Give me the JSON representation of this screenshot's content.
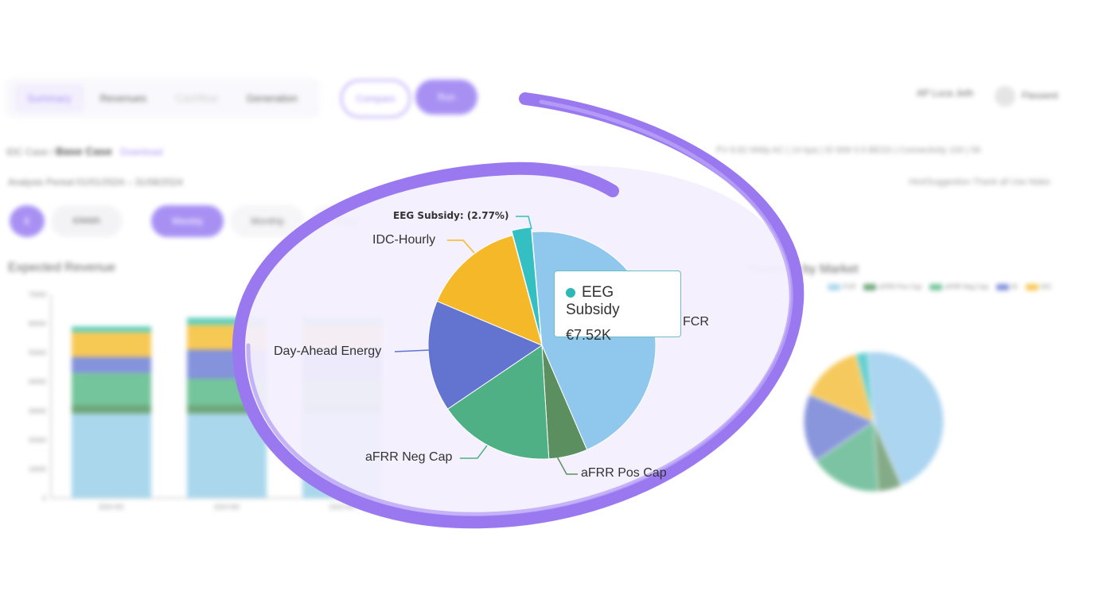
{
  "header": {
    "tabs": [
      {
        "label": "Summary"
      },
      {
        "label": "Revenues"
      },
      {
        "label": "Cashflow"
      },
      {
        "label": "Generation"
      }
    ],
    "compare_label": "Compare",
    "run_label": "Run",
    "user_label": "AP Luca Jeth",
    "user_name": "Flexsent"
  },
  "breadcrumb": {
    "root": "IDC Case /",
    "current": "Base Case",
    "link": "Download"
  },
  "period_text": "Analysis Period  01/01/2024 – 31/08/2024",
  "stats_text": "PV  8.82 MWp AC  |  14 kpa  |  ID MW 0.5 BESS  |  Connectivity  100  |  56",
  "hint_text": "Hint/Suggestion  Thank all Use Make",
  "controls": {
    "circle_label": "€",
    "segment_label": "€/MWh",
    "range": [
      {
        "label": "Weekly"
      },
      {
        "label": "Monthly"
      },
      {
        "label": "Yearly"
      }
    ]
  },
  "expected_revenue_title": "Expected Revenue",
  "market_title": "Revenue by Market",
  "mini_legend": [
    {
      "label": "FCR",
      "color": "#8ecae6"
    },
    {
      "label": "aFRR Pos Cap",
      "color": "#3f8a4f"
    },
    {
      "label": "aFRR Neg Cap",
      "color": "#46b27a"
    },
    {
      "label": "ID",
      "color": "#5b6fcf"
    },
    {
      "label": "IDC",
      "color": "#f4b61c"
    }
  ],
  "chart_data": [
    {
      "type": "pie",
      "title": "",
      "slices": [
        {
          "label": "FCR",
          "value": 44.9,
          "color": "#90c7ec"
        },
        {
          "label": "aFRR Pos Cap",
          "value": 5.5,
          "color": "#5c8f60"
        },
        {
          "label": "aFRR Neg Cap",
          "value": 16.5,
          "color": "#50b085"
        },
        {
          "label": "Day-Ahead Energy",
          "value": 15.8,
          "color": "#6274d0"
        },
        {
          "label": "IDC-Hourly",
          "value": 14.5,
          "color": "#f4b829"
        },
        {
          "label": "EEG Subsidy",
          "value": 2.77,
          "color": "#34c0c2"
        }
      ],
      "highlight": {
        "label": "EEG Subsidy: (2.77%)"
      },
      "tooltip": {
        "name": "EEG Subsidy",
        "value": "€7.52K"
      }
    },
    {
      "type": "bar",
      "stacked": true,
      "categories": [
        "2024-W1",
        "2024-W2",
        "2024-W3"
      ],
      "y_ticks": [
        "0",
        "10000",
        "20000",
        "30000",
        "40000",
        "50000",
        "60000",
        "70000"
      ],
      "ylim": [
        0,
        70000
      ],
      "series": [
        {
          "name": "FCR",
          "color": "#8ecae6",
          "values": [
            29000,
            29000,
            29000
          ]
        },
        {
          "name": "aFRR Pos Cap",
          "color": "#3f8a4f",
          "values": [
            3000,
            3000,
            3000
          ]
        },
        {
          "name": "aFRR Neg Cap",
          "color": "#46b27a",
          "values": [
            11000,
            9000,
            9000
          ]
        },
        {
          "name": "ID",
          "color": "#5b6fcf",
          "values": [
            5500,
            10000,
            10000
          ]
        },
        {
          "name": "IDC",
          "color": "#f4b61c",
          "values": [
            8500,
            8500,
            8500
          ]
        },
        {
          "name": "EEG",
          "color": "#34c0a8",
          "values": [
            2000,
            2500,
            2500
          ]
        }
      ]
    }
  ]
}
